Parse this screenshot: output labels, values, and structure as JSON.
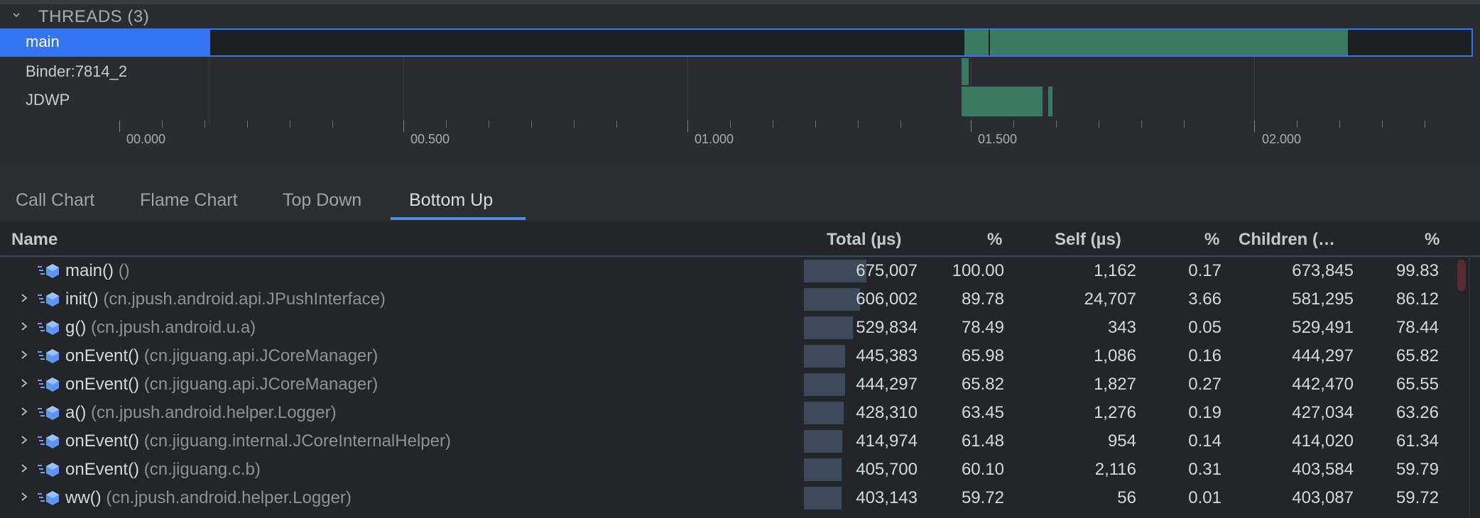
{
  "threads": {
    "header": "THREADS (3)",
    "items": [
      {
        "label": "main"
      },
      {
        "label": "Binder:7814_2"
      },
      {
        "label": "JDWP"
      }
    ]
  },
  "ruler": {
    "labels": [
      "00.000",
      "00.500",
      "01.000",
      "01.500",
      "02.000"
    ]
  },
  "tabs": [
    {
      "label": "Call Chart",
      "active": false
    },
    {
      "label": "Flame Chart",
      "active": false
    },
    {
      "label": "Top Down",
      "active": false
    },
    {
      "label": "Bottom Up",
      "active": true
    }
  ],
  "table": {
    "columns": [
      "Name",
      "Total (µs)",
      "%",
      "Self (µs)",
      "%",
      "Children (…",
      "%"
    ],
    "rows": [
      {
        "method": "main()",
        "cls": "()",
        "total": "675,007",
        "total_pct": "100.00",
        "self": "1,162",
        "self_pct": "0.17",
        "children": "673,845",
        "children_pct": "99.83",
        "expandable": false
      },
      {
        "method": "init()",
        "cls": "(cn.jpush.android.api.JPushInterface)",
        "total": "606,002",
        "total_pct": "89.78",
        "self": "24,707",
        "self_pct": "3.66",
        "children": "581,295",
        "children_pct": "86.12",
        "expandable": true
      },
      {
        "method": "g()",
        "cls": "(cn.jpush.android.u.a)",
        "total": "529,834",
        "total_pct": "78.49",
        "self": "343",
        "self_pct": "0.05",
        "children": "529,491",
        "children_pct": "78.44",
        "expandable": true
      },
      {
        "method": "onEvent()",
        "cls": "(cn.jiguang.api.JCoreManager)",
        "total": "445,383",
        "total_pct": "65.98",
        "self": "1,086",
        "self_pct": "0.16",
        "children": "444,297",
        "children_pct": "65.82",
        "expandable": true
      },
      {
        "method": "onEvent()",
        "cls": "(cn.jiguang.api.JCoreManager)",
        "total": "444,297",
        "total_pct": "65.82",
        "self": "1,827",
        "self_pct": "0.27",
        "children": "442,470",
        "children_pct": "65.55",
        "expandable": true
      },
      {
        "method": "a()",
        "cls": "(cn.jpush.android.helper.Logger)",
        "total": "428,310",
        "total_pct": "63.45",
        "self": "1,276",
        "self_pct": "0.19",
        "children": "427,034",
        "children_pct": "63.26",
        "expandable": true
      },
      {
        "method": "onEvent()",
        "cls": "(cn.jiguang.internal.JCoreInternalHelper)",
        "total": "414,974",
        "total_pct": "61.48",
        "self": "954",
        "self_pct": "0.14",
        "children": "414,020",
        "children_pct": "61.34",
        "expandable": true
      },
      {
        "method": "onEvent()",
        "cls": "(cn.jiguang.c.b)",
        "total": "405,700",
        "total_pct": "60.10",
        "self": "2,116",
        "self_pct": "0.31",
        "children": "403,584",
        "children_pct": "59.79",
        "expandable": true
      },
      {
        "method": "ww()",
        "cls": "(cn.jpush.android.helper.Logger)",
        "total": "403,143",
        "total_pct": "59.72",
        "self": "56",
        "self_pct": "0.01",
        "children": "403,087",
        "children_pct": "59.72",
        "expandable": true
      }
    ]
  },
  "colors": {
    "selection": "#3574f0",
    "activity": "#3b7a62",
    "tab_underline": "#4d8ef0"
  },
  "icons": {
    "collapse": "chevron-down-icon",
    "expand": "chevron-right-icon",
    "method": "method-node-icon"
  }
}
